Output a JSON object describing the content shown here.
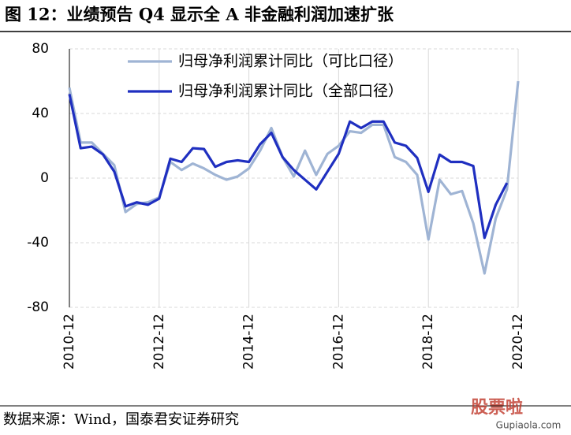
{
  "chart_data": {
    "type": "line",
    "title": "图 12：业绩预告 Q4 显示全 A 非金融利润加速扩张",
    "source": "数据来源：Wind，国泰君安证券研究",
    "watermark": [
      "股票啦",
      "Gupiaola.com"
    ],
    "categories": [
      "2010-12",
      null,
      null,
      null,
      null,
      null,
      null,
      null,
      "2012-12",
      null,
      null,
      null,
      null,
      null,
      null,
      null,
      "2014-12",
      null,
      null,
      null,
      null,
      null,
      null,
      null,
      "2016-12",
      null,
      null,
      null,
      null,
      null,
      null,
      null,
      "2018-12",
      null,
      null,
      null,
      null,
      null,
      null,
      null,
      "2020-12"
    ],
    "series": [
      {
        "name": "归母净利润累计同比（可比口径）",
        "color": "#9fb4d4",
        "values": [
          56,
          22,
          22,
          15,
          8,
          -21,
          -16,
          -15,
          -12,
          10,
          5,
          9,
          6,
          2,
          -1,
          1,
          6,
          17,
          31,
          13,
          1,
          17,
          2,
          15,
          20,
          29,
          28,
          33,
          33,
          13,
          10,
          2,
          -38,
          -1,
          -10,
          -8,
          -28,
          -59,
          -25,
          -7,
          60
        ]
      },
      {
        "name": "归母净利润累计同比（全部口径）",
        "color": "#1f2fc0",
        "values": [
          52,
          18.5,
          19.5,
          14.6,
          4,
          -17.5,
          -15,
          -16.5,
          -12.7,
          12,
          10,
          18.5,
          18,
          7,
          10,
          11,
          10,
          21,
          28,
          13,
          5,
          -1,
          -7,
          4,
          15,
          35,
          31,
          35,
          35,
          22,
          20,
          12.5,
          -8.5,
          14.5,
          10,
          10,
          7.5,
          -37,
          -16.5,
          -3,
          null
        ]
      }
    ],
    "ylim": [
      -80,
      80
    ],
    "yticks": [
      -80,
      -40,
      0,
      40,
      80
    ],
    "grid": true
  }
}
